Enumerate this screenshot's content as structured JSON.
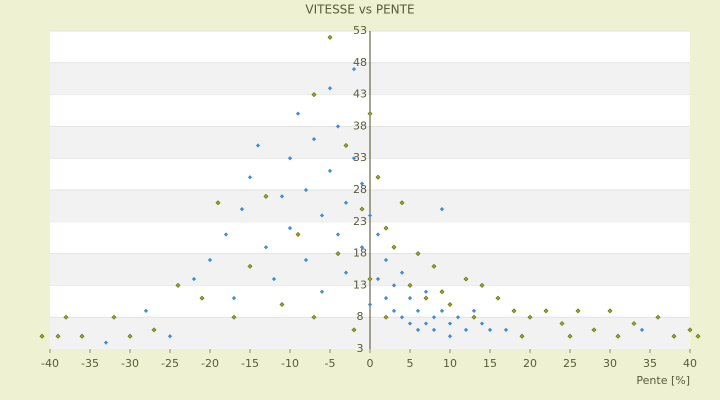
{
  "chart_data": {
    "type": "scatter",
    "title": "VITESSE vs PENTE",
    "x_label": "Pente [%]",
    "xlim": [
      -40,
      40
    ],
    "xticks": [
      -40,
      -35,
      -30,
      -25,
      -20,
      -15,
      -10,
      -5,
      0,
      5,
      10,
      15,
      20,
      25,
      30,
      35,
      40
    ],
    "ylim": [
      3,
      53
    ],
    "yticks": [
      3,
      8,
      13,
      18,
      23,
      28,
      33,
      38,
      43,
      48,
      53
    ],
    "grid": true,
    "series": [
      {
        "color": "#3b8fd8",
        "x": [
          -22,
          -20,
          -18,
          -17,
          -16,
          -15,
          -14,
          -13,
          -12,
          -11,
          -10,
          -10,
          -9,
          -8,
          -8,
          -7,
          -6,
          -6,
          -5,
          -5,
          -4,
          -4,
          -3,
          -3,
          -2,
          -2,
          -1,
          -1,
          0,
          0,
          1,
          1,
          2,
          2,
          3,
          3,
          4,
          4,
          5,
          5,
          6,
          6,
          7,
          7,
          8,
          8,
          9,
          10,
          10,
          11,
          12,
          13,
          14,
          15,
          17,
          34,
          -33,
          -25,
          -28,
          9
        ],
        "y": [
          14,
          17,
          21,
          11,
          25,
          30,
          35,
          19,
          14,
          27,
          33,
          22,
          40,
          28,
          17,
          36,
          24,
          12,
          44,
          31,
          21,
          38,
          26,
          15,
          47,
          33,
          29,
          19,
          24,
          10,
          21,
          14,
          17,
          11,
          13,
          9,
          15,
          8,
          11,
          7,
          9,
          6,
          12,
          7,
          8,
          6,
          9,
          7,
          5,
          8,
          6,
          9,
          7,
          6,
          6,
          6,
          4,
          5,
          9,
          25
        ]
      },
      {
        "color": "#9aa51c",
        "x": [
          -41,
          -39,
          -38,
          -32,
          -27,
          -24,
          -21,
          -19,
          -17,
          -15,
          -13,
          -11,
          -9,
          -7,
          -7,
          -5,
          -4,
          -3,
          -2,
          -1,
          0,
          0,
          1,
          2,
          2,
          3,
          4,
          5,
          6,
          7,
          8,
          9,
          10,
          12,
          13,
          14,
          16,
          18,
          20,
          22,
          24,
          26,
          28,
          30,
          31,
          33,
          36,
          38,
          40,
          41,
          25,
          19,
          -30,
          -36
        ],
        "y": [
          5,
          5,
          8,
          8,
          6,
          13,
          11,
          26,
          8,
          16,
          27,
          10,
          21,
          43,
          8,
          52,
          18,
          35,
          6,
          25,
          40,
          14,
          30,
          22,
          8,
          19,
          26,
          13,
          18,
          11,
          16,
          12,
          10,
          14,
          8,
          13,
          11,
          9,
          8,
          9,
          7,
          9,
          6,
          9,
          5,
          7,
          8,
          5,
          6,
          5,
          5,
          5,
          5,
          5
        ]
      }
    ]
  }
}
